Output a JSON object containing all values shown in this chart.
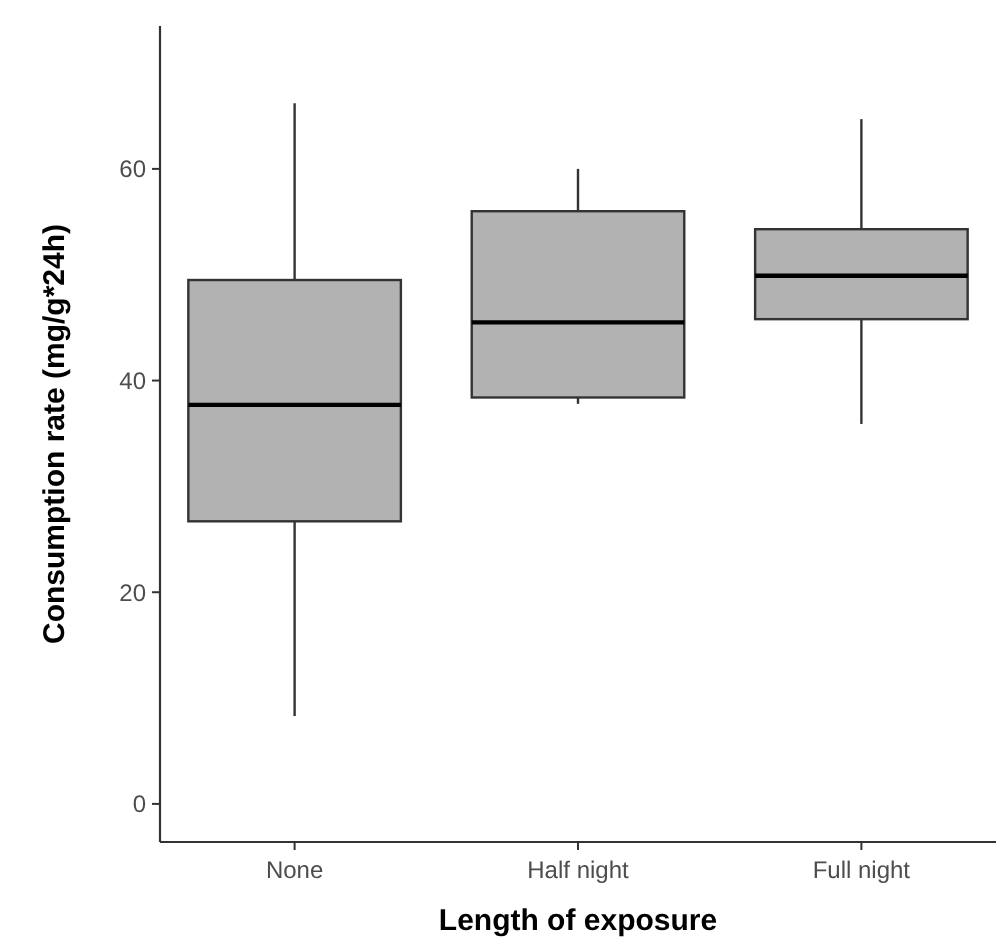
{
  "chart_data": {
    "type": "box",
    "xlabel": "Length of exposure",
    "ylabel": "Consumption rate (mg/g*24h)",
    "categories": [
      "None",
      "Half night",
      "Full night"
    ],
    "color": "#b2b2b2",
    "boxes": [
      {
        "low": 8.3,
        "q1": 26.7,
        "median": 37.7,
        "q3": 49.5,
        "high": 66.2
      },
      {
        "low": 37.8,
        "q1": 38.4,
        "median": 45.5,
        "q3": 56,
        "high": 60
      },
      {
        "low": 35.9,
        "q1": 45.8,
        "median": 49.9,
        "q3": 54.3,
        "high": 64.7
      }
    ],
    "ylim": [
      -3.6,
      73.5
    ],
    "yticks": [
      0,
      20,
      40,
      60
    ],
    "grid": false
  }
}
